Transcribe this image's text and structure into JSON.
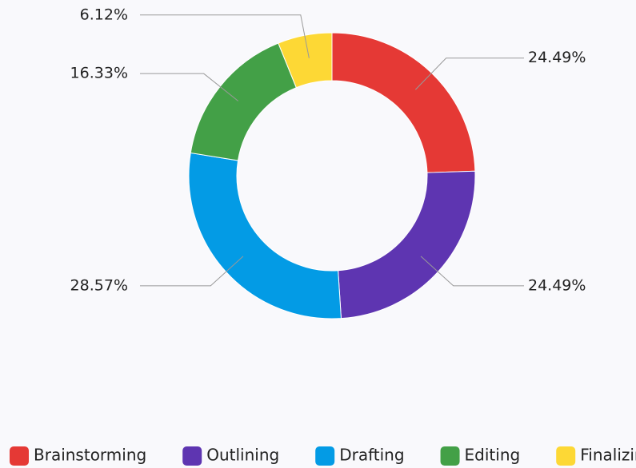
{
  "chart_data": {
    "type": "donut",
    "categories": [
      "Brainstorming",
      "Outlining",
      "Drafting",
      "Editing",
      "Finalizing"
    ],
    "values": [
      24.49,
      24.49,
      28.57,
      16.33,
      6.12
    ],
    "value_labels": [
      "24.49%",
      "24.49%",
      "28.57%",
      "16.33%",
      "6.12%"
    ],
    "colors": [
      "#e53935",
      "#5e35b1",
      "#039be5",
      "#43a047",
      "#fdd835"
    ],
    "legend": "bottom"
  }
}
